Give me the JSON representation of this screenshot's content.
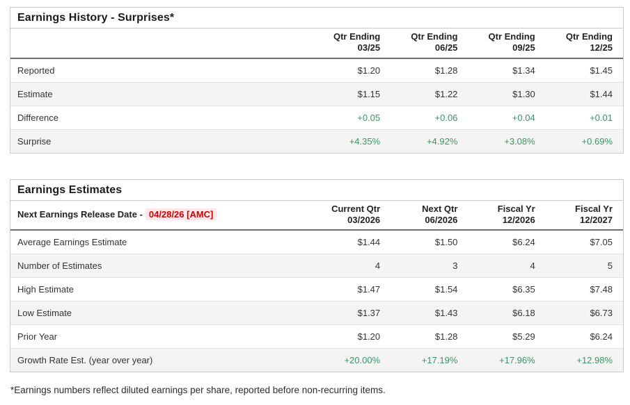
{
  "colors": {
    "positive_green": "#3a9464",
    "alert_red": "#cc0000",
    "alert_red_background": "#fce8e8",
    "stripe_gray": "#f4f4f4",
    "border_gray": "#c9c9c9"
  },
  "tables": [
    {
      "title": "Earnings History - Surprises*",
      "corner": null,
      "columns": [
        {
          "line1": "Qtr Ending",
          "line2": "03/25"
        },
        {
          "line1": "Qtr Ending",
          "line2": "06/25"
        },
        {
          "line1": "Qtr Ending",
          "line2": "09/25"
        },
        {
          "line1": "Qtr Ending",
          "line2": "12/25"
        }
      ],
      "rows": [
        {
          "label": "Reported",
          "values": [
            "$1.20",
            "$1.28",
            "$1.34",
            "$1.45"
          ],
          "value_color": "default",
          "striped": false
        },
        {
          "label": "Estimate",
          "values": [
            "$1.15",
            "$1.22",
            "$1.30",
            "$1.44"
          ],
          "value_color": "default",
          "striped": true
        },
        {
          "label": "Difference",
          "values": [
            "+0.05",
            "+0.06",
            "+0.04",
            "+0.01"
          ],
          "value_color": "green",
          "striped": false
        },
        {
          "label": "Surprise",
          "values": [
            "+4.35%",
            "+4.92%",
            "+3.08%",
            "+0.69%"
          ],
          "value_color": "green",
          "striped": true
        }
      ]
    },
    {
      "title": "Earnings Estimates",
      "corner": {
        "label": "Next Earnings Release Date -",
        "date": "04/28/26 [AMC]"
      },
      "columns": [
        {
          "line1": "Current Qtr",
          "line2": "03/2026"
        },
        {
          "line1": "Next Qtr",
          "line2": "06/2026"
        },
        {
          "line1": "Fiscal Yr",
          "line2": "12/2026"
        },
        {
          "line1": "Fiscal Yr",
          "line2": "12/2027"
        }
      ],
      "rows": [
        {
          "label": "Average Earnings Estimate",
          "values": [
            "$1.44",
            "$1.50",
            "$6.24",
            "$7.05"
          ],
          "value_color": "default",
          "striped": false
        },
        {
          "label": "Number of Estimates",
          "values": [
            "4",
            "3",
            "4",
            "5"
          ],
          "value_color": "default",
          "striped": true
        },
        {
          "label": "High Estimate",
          "values": [
            "$1.47",
            "$1.54",
            "$6.35",
            "$7.48"
          ],
          "value_color": "default",
          "striped": false
        },
        {
          "label": "Low Estimate",
          "values": [
            "$1.37",
            "$1.43",
            "$6.18",
            "$6.73"
          ],
          "value_color": "default",
          "striped": true
        },
        {
          "label": "Prior Year",
          "values": [
            "$1.20",
            "$1.28",
            "$5.29",
            "$6.24"
          ],
          "value_color": "default",
          "striped": false
        },
        {
          "label": "Growth Rate Est. (year over year)",
          "values": [
            "+20.00%",
            "+17.19%",
            "+17.96%",
            "+12.98%"
          ],
          "value_color": "green",
          "striped": true
        }
      ]
    }
  ],
  "footnote": "*Earnings numbers reflect diluted earnings per share, reported before non-recurring items."
}
